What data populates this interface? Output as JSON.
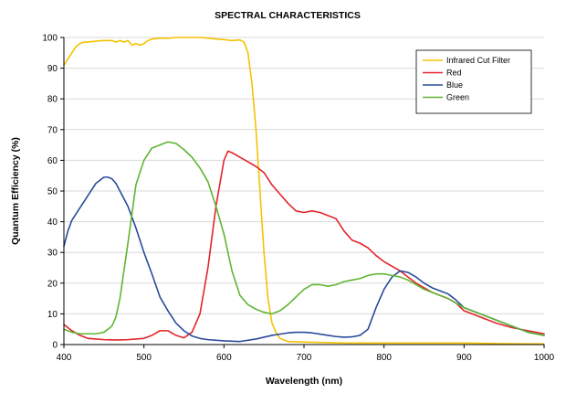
{
  "chart_data": {
    "type": "line",
    "title": "SPECTRAL CHARACTERISTICS",
    "xlabel": "Wavelength (nm)",
    "ylabel": "Quantum Efficiency (%)",
    "xlim": [
      400,
      1000
    ],
    "ylim": [
      0,
      100
    ],
    "x_ticks": [
      400,
      500,
      600,
      700,
      800,
      900,
      1000
    ],
    "y_ticks": [
      0,
      10,
      20,
      30,
      40,
      50,
      60,
      70,
      80,
      90,
      100
    ],
    "grid": "horizontal",
    "legend_position": "top-right",
    "series": [
      {
        "name": "Infrared Cut Filter",
        "color": "#f5c200",
        "x": [
          400,
          405,
          410,
          415,
          420,
          425,
          430,
          440,
          450,
          460,
          465,
          470,
          475,
          480,
          485,
          490,
          495,
          500,
          505,
          510,
          520,
          530,
          540,
          550,
          560,
          570,
          580,
          590,
          600,
          610,
          620,
          625,
          630,
          635,
          640,
          645,
          650,
          655,
          660,
          665,
          670,
          680,
          700,
          750,
          800,
          850,
          900,
          950,
          1000
        ],
        "y": [
          91,
          93,
          95,
          97,
          98,
          98.5,
          98.5,
          98.8,
          99,
          99,
          98.5,
          99,
          98.5,
          99,
          97.5,
          98,
          97.5,
          98,
          99,
          99.5,
          99.8,
          99.7,
          100,
          100,
          100,
          100,
          99.8,
          99.5,
          99.3,
          99,
          99.2,
          98.5,
          95,
          85,
          70,
          50,
          30,
          15,
          7,
          4,
          2,
          1,
          0.8,
          0.5,
          0.5,
          0.5,
          0.5,
          0.3,
          0.2
        ]
      },
      {
        "name": "Red",
        "color": "#e3242b",
        "x": [
          400,
          410,
          420,
          430,
          440,
          450,
          460,
          470,
          480,
          490,
          500,
          510,
          520,
          530,
          540,
          550,
          560,
          570,
          580,
          590,
          600,
          605,
          610,
          620,
          630,
          640,
          650,
          660,
          670,
          680,
          690,
          700,
          710,
          720,
          730,
          740,
          750,
          760,
          770,
          780,
          790,
          800,
          810,
          820,
          830,
          840,
          850,
          860,
          870,
          880,
          890,
          900,
          920,
          940,
          960,
          980,
          1000
        ],
        "y": [
          6.5,
          4.5,
          3,
          2,
          1.8,
          1.6,
          1.5,
          1.5,
          1.6,
          1.8,
          2,
          3,
          4.5,
          4.5,
          3,
          2.2,
          4,
          10,
          25,
          45,
          60,
          63,
          62.5,
          61,
          59.5,
          58,
          56,
          52,
          49,
          46,
          43.5,
          43,
          43.5,
          43,
          42,
          41,
          37,
          34,
          33,
          31.5,
          29,
          27,
          25.5,
          24,
          22,
          20,
          18.5,
          17,
          16,
          15,
          13.5,
          11,
          9,
          7,
          5.5,
          4.5,
          3.5
        ]
      },
      {
        "name": "Blue",
        "color": "#2a4b9b",
        "x": [
          400,
          405,
          410,
          420,
          430,
          440,
          450,
          455,
          460,
          465,
          470,
          480,
          490,
          500,
          510,
          520,
          530,
          540,
          550,
          560,
          570,
          580,
          600,
          620,
          640,
          660,
          680,
          690,
          700,
          710,
          720,
          730,
          740,
          750,
          760,
          770,
          780,
          790,
          800,
          810,
          820,
          830,
          840,
          850,
          860,
          870,
          880,
          890,
          900,
          920,
          940,
          960,
          980,
          1000
        ],
        "y": [
          32,
          37,
          40.5,
          44.5,
          48.5,
          52.5,
          54.5,
          54.5,
          54,
          52.5,
          50,
          45,
          38,
          30,
          23,
          15.5,
          11,
          7,
          4.5,
          2.8,
          2,
          1.6,
          1.2,
          1,
          1.8,
          3,
          3.8,
          4,
          4,
          3.8,
          3.4,
          3,
          2.6,
          2.4,
          2.5,
          3,
          5,
          12,
          18,
          22,
          24,
          23.5,
          22,
          20,
          18.5,
          17.5,
          16.5,
          14.5,
          12,
          10,
          8,
          6,
          4,
          3
        ]
      },
      {
        "name": "Green",
        "color": "#5fb533",
        "x": [
          400,
          410,
          420,
          430,
          440,
          450,
          460,
          465,
          470,
          480,
          490,
          500,
          510,
          520,
          530,
          540,
          550,
          560,
          570,
          580,
          590,
          600,
          610,
          620,
          630,
          640,
          650,
          660,
          670,
          680,
          690,
          700,
          710,
          720,
          730,
          740,
          750,
          760,
          770,
          780,
          790,
          800,
          810,
          820,
          830,
          840,
          850,
          860,
          870,
          880,
          890,
          900,
          920,
          940,
          960,
          980,
          1000
        ],
        "y": [
          5,
          4,
          3.5,
          3.5,
          3.5,
          4,
          6,
          9,
          15,
          33,
          52,
          60,
          64,
          65,
          66,
          65.5,
          63.5,
          61,
          57.5,
          53,
          45,
          36,
          24,
          16,
          13,
          11.5,
          10.5,
          10,
          11,
          13,
          15.5,
          18,
          19.5,
          19.5,
          19,
          19.5,
          20.5,
          21,
          21.5,
          22.5,
          23,
          23,
          22.5,
          22,
          21,
          19.5,
          18,
          17,
          16,
          15,
          13.5,
          12,
          10,
          8,
          6,
          4,
          3
        ]
      }
    ]
  }
}
